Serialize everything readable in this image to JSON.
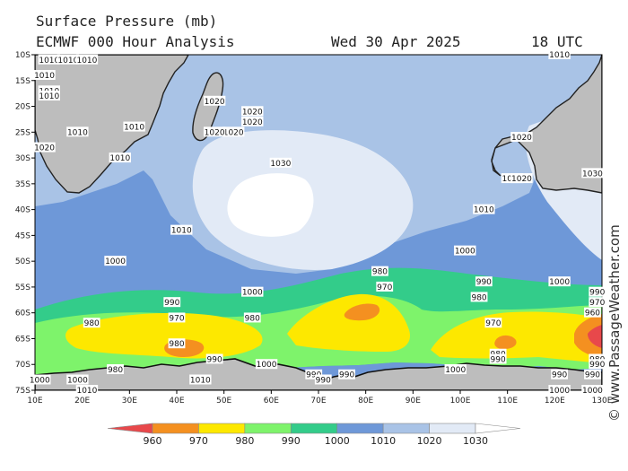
{
  "header": {
    "title": "Surface Pressure (mb)",
    "model": "ECMWF 000 Hour Analysis",
    "date": "Wed 30 Apr 2025",
    "time": "18 UTC"
  },
  "credit": "© www.PassageWeather.com",
  "axes": {
    "lat_labels": [
      "10S",
      "15S",
      "20S",
      "25S",
      "30S",
      "35S",
      "40S",
      "45S",
      "50S",
      "55S",
      "60S",
      "65S",
      "70S",
      "75S"
    ],
    "lon_labels": [
      "10E",
      "20E",
      "30E",
      "40E",
      "50E",
      "60E",
      "70E",
      "80E",
      "90E",
      "100E",
      "110E",
      "120E",
      "130E"
    ]
  },
  "colors": {
    "lt960": "#e8484b",
    "p960": "#f49020",
    "p970": "#fde800",
    "p980": "#7ef36b",
    "p990": "#33cc8a",
    "p1000": "#6e98d8",
    "p1010": "#a9c3e6",
    "p1020": "#e2eaf6",
    "p1030": "#ffffff",
    "land": "#bdbdbd"
  },
  "legend": {
    "labels": [
      "960",
      "970",
      "980",
      "990",
      "1000",
      "1010",
      "1020",
      "1030"
    ]
  },
  "contour_labels": [
    {
      "t": "1010",
      "lon": 13,
      "lat": -11
    },
    {
      "t": "1010",
      "lon": 17,
      "lat": -11
    },
    {
      "t": "1010",
      "lon": 21,
      "lat": -11
    },
    {
      "t": "1010",
      "lon": 12,
      "lat": -14
    },
    {
      "t": "1010",
      "lon": 13,
      "lat": -17
    },
    {
      "t": "1010",
      "lon": 13,
      "lat": -18
    },
    {
      "t": "1010",
      "lon": 19,
      "lat": -25
    },
    {
      "t": "1010",
      "lon": 31,
      "lat": -24
    },
    {
      "t": "1020",
      "lon": 12,
      "lat": -28
    },
    {
      "t": "1010",
      "lon": 28,
      "lat": -30
    },
    {
      "t": "1020",
      "lon": 48,
      "lat": -19
    },
    {
      "t": "1020",
      "lon": 56,
      "lat": -21
    },
    {
      "t": "1020",
      "lon": 56,
      "lat": -23
    },
    {
      "t": "1020",
      "lon": 52,
      "lat": -25
    },
    {
      "t": "1020",
      "lon": 48,
      "lat": -25
    },
    {
      "t": "1030",
      "lon": 62,
      "lat": -31
    },
    {
      "t": "1010",
      "lon": 41,
      "lat": -44
    },
    {
      "t": "1000",
      "lon": 27,
      "lat": -50
    },
    {
      "t": "1000",
      "lon": 56,
      "lat": -56
    },
    {
      "t": "990",
      "lon": 39,
      "lat": -58
    },
    {
      "t": "980",
      "lon": 56,
      "lat": -61
    },
    {
      "t": "980",
      "lon": 22,
      "lat": -62
    },
    {
      "t": "970",
      "lon": 40,
      "lat": -61
    },
    {
      "t": "980",
      "lon": 40,
      "lat": -66
    },
    {
      "t": "990",
      "lon": 48,
      "lat": -69
    },
    {
      "t": "1000",
      "lon": 59,
      "lat": -70
    },
    {
      "t": "980",
      "lon": 27,
      "lat": -71
    },
    {
      "t": "1000",
      "lon": 19,
      "lat": -73
    },
    {
      "t": "1000",
      "lon": 11,
      "lat": -73
    },
    {
      "t": "1010",
      "lon": 45,
      "lat": -73
    },
    {
      "t": "1010",
      "lon": 21,
      "lat": -75
    },
    {
      "t": "990",
      "lon": 69,
      "lat": -72
    },
    {
      "t": "990",
      "lon": 71,
      "lat": -73
    },
    {
      "t": "990",
      "lon": 76,
      "lat": -72
    },
    {
      "t": "980",
      "lon": 83,
      "lat": -52
    },
    {
      "t": "970",
      "lon": 84,
      "lat": -55
    },
    {
      "t": "1000",
      "lon": 101,
      "lat": -48
    },
    {
      "t": "1010",
      "lon": 105,
      "lat": -40
    },
    {
      "t": "990",
      "lon": 105,
      "lat": -54
    },
    {
      "t": "980",
      "lon": 104,
      "lat": -57
    },
    {
      "t": "970",
      "lon": 107,
      "lat": -62
    },
    {
      "t": "980",
      "lon": 108,
      "lat": -68
    },
    {
      "t": "990",
      "lon": 108,
      "lat": -69
    },
    {
      "t": "1000",
      "lon": 99,
      "lat": -71
    },
    {
      "t": "1000",
      "lon": 121,
      "lat": -54
    },
    {
      "t": "960",
      "lon": 128,
      "lat": -60
    },
    {
      "t": "970",
      "lon": 129,
      "lat": -58
    },
    {
      "t": "990",
      "lon": 129,
      "lat": -56
    },
    {
      "t": "980",
      "lon": 129,
      "lat": -69
    },
    {
      "t": "990",
      "lon": 129,
      "lat": -70
    },
    {
      "t": "990",
      "lon": 128,
      "lat": -72
    },
    {
      "t": "990",
      "lon": 121,
      "lat": -72
    },
    {
      "t": "1000",
      "lon": 121,
      "lat": -75
    },
    {
      "t": "1000",
      "lon": 128,
      "lat": -75
    },
    {
      "t": "1010",
      "lon": 121,
      "lat": -10
    },
    {
      "t": "1020",
      "lon": 113,
      "lat": -26
    },
    {
      "t": "1020",
      "lon": 111,
      "lat": -34
    },
    {
      "t": "1020",
      "lon": 113,
      "lat": -34
    },
    {
      "t": "1030",
      "lon": 128,
      "lat": -33
    }
  ]
}
